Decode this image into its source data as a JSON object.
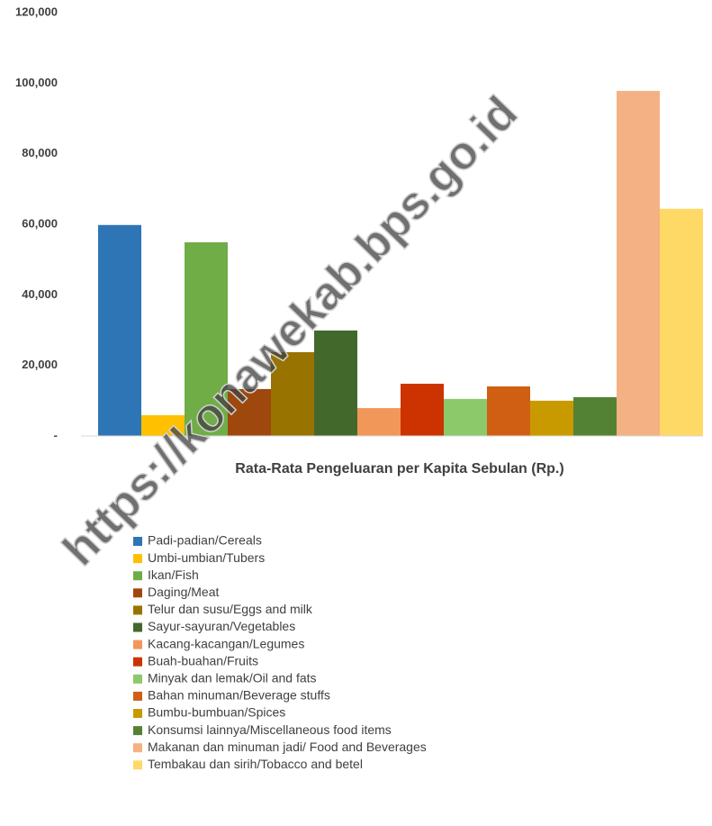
{
  "chart_data": {
    "type": "bar",
    "watermark": "https://konawekab.bps.go.id",
    "x_label": "Rata-Rata Pengeluaran per Kapita Sebulan (Rp.)",
    "categories": [
      "Rata-Rata Pengeluaran per Kapita Sebulan (Rp.)"
    ],
    "ylim": [
      0,
      120000
    ],
    "yticks": [
      {
        "value": 0,
        "label": "-"
      },
      {
        "value": 20000,
        "label": "20,000"
      },
      {
        "value": 40000,
        "label": "40,000"
      },
      {
        "value": 60000,
        "label": "60,000"
      },
      {
        "value": 80000,
        "label": "80,000"
      },
      {
        "value": 100000,
        "label": "100,000"
      },
      {
        "value": 120000,
        "label": "120,000"
      }
    ],
    "grid": false,
    "legend": "bottom",
    "series": [
      {
        "name": "Padi-padian/Cereals",
        "color": "#2e75b6",
        "values": [
          59800
        ]
      },
      {
        "name": "Umbi-umbian/Tubers",
        "color": "#ffc000",
        "values": [
          5900
        ]
      },
      {
        "name": "Ikan/Fish",
        "color": "#70ad47",
        "values": [
          54900
        ]
      },
      {
        "name": "Daging/Meat",
        "color": "#9e480e",
        "values": [
          13300
        ]
      },
      {
        "name": "Telur dan susu/Eggs and milk",
        "color": "#997300",
        "values": [
          23750
        ]
      },
      {
        "name": "Sayur-sayuran/Vegetables",
        "color": "#43682b",
        "values": [
          29900
        ]
      },
      {
        "name": "Kacang-kacangan/Legumes",
        "color": "#f1975a",
        "values": [
          7900
        ]
      },
      {
        "name": "Buah-buahan/Fruits",
        "color": "#cc3300",
        "values": [
          14800
        ]
      },
      {
        "name": "Minyak dan lemak/Oil and fats",
        "color": "#8cc96a",
        "values": [
          10500
        ]
      },
      {
        "name": "Bahan minuman/Beverage stuffs",
        "color": "#d05f14",
        "values": [
          14050
        ]
      },
      {
        "name": "Bumbu-bumbuan/Spices",
        "color": "#c89a00",
        "values": [
          10000
        ]
      },
      {
        "name": "Konsumsi lainnya/Miscellaneous food items",
        "color": "#548235",
        "values": [
          11000
        ]
      },
      {
        "name": "Makanan dan minuman jadi/ Food and Beverages",
        "color": "#f4b183",
        "values": [
          97800
        ]
      },
      {
        "name": "Tembakau dan sirih/Tobacco and betel",
        "color": "#ffd966",
        "values": [
          64400
        ]
      }
    ]
  }
}
